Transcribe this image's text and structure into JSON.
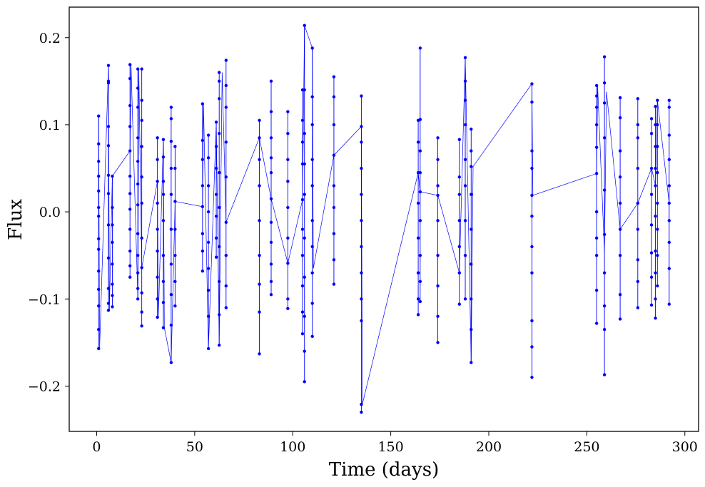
{
  "chart_data": {
    "type": "line",
    "title": "",
    "xlabel": "Time (days)",
    "ylabel": "Flux",
    "xlim": [
      -14,
      307
    ],
    "ylim": [
      -0.252,
      0.235
    ],
    "xticks": [
      0,
      50,
      100,
      150,
      200,
      250,
      300
    ],
    "xtick_labels": [
      "0",
      "50",
      "100",
      "150",
      "200",
      "250",
      "300"
    ],
    "yticks": [
      -0.2,
      -0.1,
      0.0,
      0.1,
      0.2
    ],
    "ytick_labels": [
      "−0.2",
      "−0.1",
      "0.0",
      "0.1",
      "0.2"
    ],
    "grid": false,
    "color": "#0000ff",
    "marker": "circle",
    "series": [
      {
        "x": [
          1.0,
          1.5,
          6.0,
          6.5,
          8.0,
          17.0,
          17.5,
          21.0,
          21.5,
          23.0,
          31.0,
          31.5,
          34.0,
          34.5,
          38.0,
          40.0,
          54.0,
          54.5,
          57.0,
          61.0,
          62.5,
          64.0,
          66.0,
          83.0,
          89.0,
          97.5,
          105.0,
          106.0,
          110.0,
          110.5,
          121.0,
          135.0,
          135.5,
          164.0,
          165.0,
          174.0,
          185.0,
          188.0,
          191.0,
          192.0,
          222.0,
          222.5,
          255.0,
          255.5,
          259.0,
          260.0,
          267.0,
          276.0,
          283.0,
          285.0,
          286.0,
          292.0
        ],
        "y": [
          0.11,
          -0.157,
          0.168,
          -0.113,
          0.041,
          0.07,
          0.169,
          -0.1,
          0.164,
          -0.064,
          0.035,
          -0.121,
          0.083,
          -0.133,
          -0.173,
          0.012,
          0.006,
          0.124,
          -0.157,
          0.103,
          -0.153,
          0.16,
          -0.012,
          0.085,
          0.015,
          -0.059,
          0.014,
          0.214,
          0.188,
          -0.065,
          0.065,
          0.098,
          -0.221,
          0.045,
          0.023,
          0.019,
          -0.07,
          0.177,
          -0.173,
          0.052,
          0.147,
          0.019,
          0.044,
          0.145,
          -0.046,
          0.138,
          -0.02,
          0.01,
          0.05,
          0.03,
          0.128,
          0.01
        ]
      }
    ],
    "segments": [
      {
        "x": 1.0,
        "min": -0.157,
        "max": 0.11,
        "y": [
          0.11,
          0.078,
          0.058,
          0.041,
          0.024,
          0.005,
          -0.005,
          -0.031,
          -0.043,
          -0.068,
          -0.089,
          -0.108,
          -0.135,
          -0.157
        ]
      },
      {
        "x": 6.0,
        "min": -0.113,
        "max": 0.168,
        "y": [
          0.168,
          0.15,
          0.148,
          0.098,
          0.076,
          0.042,
          0.021,
          -0.015,
          -0.053,
          -0.088,
          -0.105,
          -0.113
        ]
      },
      {
        "x": 8.0,
        "min": -0.109,
        "max": 0.041,
        "y": [
          0.041,
          0.005,
          -0.015,
          -0.035,
          -0.06,
          -0.083,
          -0.096,
          -0.109
        ]
      },
      {
        "x": 17.0,
        "min": -0.075,
        "max": 0.169,
        "y": [
          0.169,
          0.153,
          0.122,
          0.098,
          0.07,
          0.041,
          0.021,
          0.003,
          -0.02,
          -0.045,
          -0.062,
          -0.075
        ]
      },
      {
        "x": 21.0,
        "min": -0.1,
        "max": 0.164,
        "y": [
          0.164,
          0.142,
          0.12,
          0.085,
          0.058,
          0.032,
          0.008,
          -0.025,
          -0.05,
          -0.07,
          -0.088,
          -0.1
        ]
      },
      {
        "x": 23.0,
        "min": -0.131,
        "max": 0.164,
        "y": [
          0.164,
          0.128,
          0.105,
          0.075,
          0.04,
          0.01,
          -0.03,
          -0.064,
          -0.093,
          -0.115,
          -0.131
        ]
      },
      {
        "x": 31.0,
        "min": -0.121,
        "max": 0.085,
        "y": [
          0.085,
          0.06,
          0.035,
          0.01,
          -0.02,
          -0.045,
          -0.075,
          -0.1,
          -0.121
        ]
      },
      {
        "x": 34.0,
        "min": -0.133,
        "max": 0.083,
        "y": [
          0.083,
          0.063,
          0.035,
          0.02,
          -0.01,
          -0.05,
          -0.08,
          -0.104,
          -0.133
        ]
      },
      {
        "x": 38.0,
        "min": -0.173,
        "max": 0.12,
        "y": [
          0.12,
          0.107,
          0.081,
          0.05,
          0.02,
          -0.02,
          -0.06,
          -0.095,
          -0.13,
          -0.173
        ]
      },
      {
        "x": 40.0,
        "min": -0.108,
        "max": 0.075,
        "y": [
          0.075,
          0.05,
          0.012,
          -0.02,
          -0.05,
          -0.08,
          -0.108
        ]
      },
      {
        "x": 54.0,
        "min": -0.068,
        "max": 0.124,
        "y": [
          0.124,
          0.082,
          0.06,
          0.03,
          0.006,
          -0.025,
          -0.045,
          -0.068
        ]
      },
      {
        "x": 57.0,
        "min": -0.157,
        "max": 0.088,
        "y": [
          0.088,
          0.062,
          0.03,
          0.0,
          -0.035,
          -0.065,
          -0.09,
          -0.12,
          -0.157
        ]
      },
      {
        "x": 61.0,
        "min": -0.052,
        "max": 0.103,
        "y": [
          0.103,
          0.075,
          0.05,
          0.02,
          -0.005,
          -0.03,
          -0.052
        ]
      },
      {
        "x": 62.5,
        "min": -0.153,
        "max": 0.16,
        "y": [
          0.16,
          0.15,
          0.13,
          0.09,
          0.045,
          0.005,
          -0.04,
          -0.08,
          -0.118,
          -0.153
        ]
      },
      {
        "x": 66.0,
        "min": -0.11,
        "max": 0.174,
        "y": [
          0.174,
          0.145,
          0.12,
          0.08,
          0.04,
          -0.012,
          -0.05,
          -0.085,
          -0.11
        ]
      },
      {
        "x": 83.0,
        "min": -0.163,
        "max": 0.105,
        "y": [
          0.105,
          0.085,
          0.06,
          0.03,
          -0.01,
          -0.05,
          -0.083,
          -0.115,
          -0.163
        ]
      },
      {
        "x": 89.0,
        "min": -0.095,
        "max": 0.15,
        "y": [
          0.15,
          0.115,
          0.085,
          0.062,
          0.045,
          0.015,
          -0.012,
          -0.035,
          -0.06,
          -0.08,
          -0.095
        ]
      },
      {
        "x": 97.5,
        "min": -0.111,
        "max": 0.115,
        "y": [
          0.115,
          0.09,
          0.06,
          0.035,
          0.005,
          -0.03,
          -0.059,
          -0.1,
          -0.111
        ]
      },
      {
        "x": 105.0,
        "min": -0.14,
        "max": 0.14,
        "y": [
          0.14,
          0.105,
          0.08,
          0.055,
          0.014,
          -0.02,
          -0.05,
          -0.085,
          -0.115,
          -0.14
        ]
      },
      {
        "x": 106.0,
        "min": -0.195,
        "max": 0.214,
        "y": [
          0.214,
          0.14,
          0.09,
          0.055,
          0.02,
          -0.03,
          -0.075,
          -0.12,
          -0.16,
          -0.195
        ]
      },
      {
        "x": 110.0,
        "min": -0.143,
        "max": 0.188,
        "y": [
          0.188,
          0.132,
          0.1,
          0.06,
          0.03,
          -0.01,
          -0.04,
          -0.07,
          -0.105,
          -0.143
        ]
      },
      {
        "x": 121.0,
        "min": -0.083,
        "max": 0.155,
        "y": [
          0.155,
          0.132,
          0.1,
          0.065,
          0.03,
          0.005,
          -0.025,
          -0.055,
          -0.083
        ]
      },
      {
        "x": 135.0,
        "min": -0.23,
        "max": 0.133,
        "y": [
          0.133,
          0.098,
          0.08,
          0.05,
          0.02,
          -0.01,
          -0.04,
          -0.07,
          -0.1,
          -0.125,
          -0.221,
          -0.23
        ]
      },
      {
        "x": 164.0,
        "min": -0.118,
        "max": 0.105,
        "y": [
          0.105,
          0.08,
          0.045,
          0.01,
          -0.03,
          -0.07,
          -0.1,
          -0.118
        ]
      },
      {
        "x": 165.0,
        "min": -0.103,
        "max": 0.188,
        "y": [
          0.188,
          0.106,
          0.07,
          0.045,
          0.023,
          -0.01,
          -0.05,
          -0.08,
          -0.103
        ]
      },
      {
        "x": 174.0,
        "min": -0.15,
        "max": 0.085,
        "y": [
          0.085,
          0.06,
          0.03,
          0.019,
          -0.01,
          -0.05,
          -0.085,
          -0.12,
          -0.15
        ]
      },
      {
        "x": 185.0,
        "min": -0.106,
        "max": 0.083,
        "y": [
          0.083,
          0.04,
          0.02,
          -0.01,
          -0.04,
          -0.07,
          -0.106
        ]
      },
      {
        "x": 188.0,
        "min": -0.1,
        "max": 0.177,
        "y": [
          0.177,
          0.15,
          0.128,
          0.1,
          0.06,
          0.03,
          -0.01,
          -0.05,
          -0.1
        ]
      },
      {
        "x": 191.0,
        "min": -0.173,
        "max": 0.095,
        "y": [
          0.095,
          0.07,
          0.052,
          0.02,
          -0.02,
          -0.06,
          -0.1,
          -0.135,
          -0.173
        ]
      },
      {
        "x": 222.0,
        "min": -0.19,
        "max": 0.147,
        "y": [
          0.147,
          0.126,
          0.07,
          0.05,
          0.019,
          -0.005,
          -0.04,
          -0.07,
          -0.125,
          -0.155,
          -0.19
        ]
      },
      {
        "x": 255.0,
        "min": -0.128,
        "max": 0.145,
        "y": [
          0.145,
          0.133,
          0.12,
          0.1,
          0.074,
          0.044,
          0.0,
          -0.03,
          -0.05,
          -0.09,
          -0.128
        ]
      },
      {
        "x": 259.0,
        "min": -0.187,
        "max": 0.178,
        "y": [
          0.178,
          0.148,
          0.125,
          0.085,
          0.025,
          -0.026,
          -0.07,
          -0.108,
          -0.135,
          -0.187
        ]
      },
      {
        "x": 267.0,
        "min": -0.123,
        "max": 0.131,
        "y": [
          0.131,
          0.108,
          0.07,
          0.04,
          0.01,
          -0.02,
          -0.05,
          -0.095,
          -0.123
        ]
      },
      {
        "x": 276.0,
        "min": -0.11,
        "max": 0.13,
        "y": [
          0.13,
          0.1,
          0.085,
          0.05,
          0.01,
          -0.02,
          -0.055,
          -0.08,
          -0.11
        ]
      },
      {
        "x": 283.0,
        "min": -0.107,
        "max": 0.107,
        "y": [
          0.107,
          0.09,
          0.05,
          0.02,
          -0.015,
          -0.047,
          -0.075,
          -0.107
        ]
      },
      {
        "x": 285.0,
        "min": -0.122,
        "max": 0.121,
        "y": [
          0.121,
          0.1,
          0.075,
          0.05,
          0.03,
          -0.005,
          -0.045,
          -0.07,
          -0.1,
          -0.122
        ]
      },
      {
        "x": 286.0,
        "min": -0.085,
        "max": 0.128,
        "y": [
          0.128,
          0.1,
          0.075,
          0.045,
          0.01,
          -0.02,
          -0.05,
          -0.085
        ]
      },
      {
        "x": 292.0,
        "min": -0.106,
        "max": 0.128,
        "y": [
          0.128,
          0.12,
          0.088,
          0.06,
          0.03,
          0.01,
          -0.01,
          -0.035,
          -0.065,
          -0.106
        ]
      }
    ]
  }
}
